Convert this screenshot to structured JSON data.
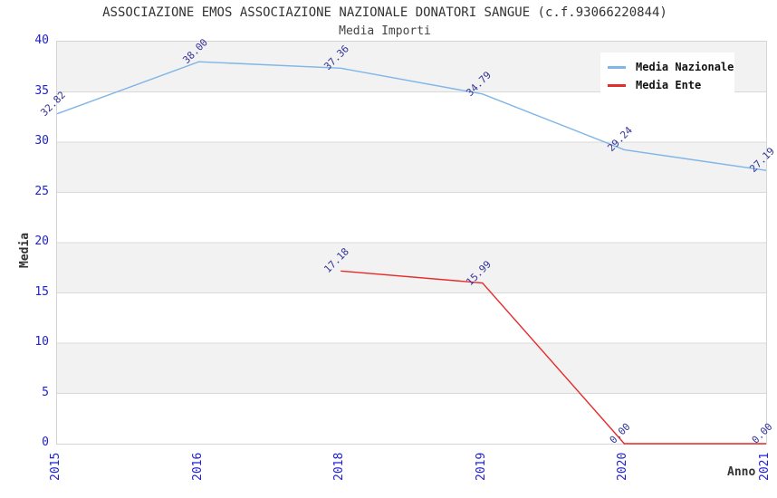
{
  "title": "ASSOCIAZIONE EMOS ASSOCIAZIONE NAZIONALE DONATORI SANGUE (c.f.93066220844)",
  "subtitle": "Media Importi",
  "chart_data": {
    "type": "line",
    "categories": [
      "2015",
      "2016",
      "2018",
      "2019",
      "2020",
      "2021"
    ],
    "series": [
      {
        "name": "Media Nazionale",
        "color": "#7fb5e7",
        "values": [
          32.82,
          38.0,
          37.36,
          34.79,
          29.24,
          27.19
        ]
      },
      {
        "name": "Media Ente",
        "color": "#e62b2b",
        "values": [
          null,
          null,
          17.18,
          15.99,
          0.0,
          0.0
        ]
      }
    ],
    "xlabel": "Anno",
    "ylabel": "Media",
    "ylim": [
      0,
      40
    ],
    "yticks": [
      0,
      5,
      10,
      15,
      20,
      25,
      30,
      35,
      40
    ],
    "grid": "horizontal-bands",
    "legend_position": "top-right",
    "data_labels": "values shown rotated 45deg with 2 decimals"
  },
  "colors": {
    "band_gray": "#f2f2f2",
    "gridline": "#d9d9d9",
    "tick_label_blue": "#2121ce",
    "data_label_navy": "#333399",
    "text_dark": "#333333"
  }
}
